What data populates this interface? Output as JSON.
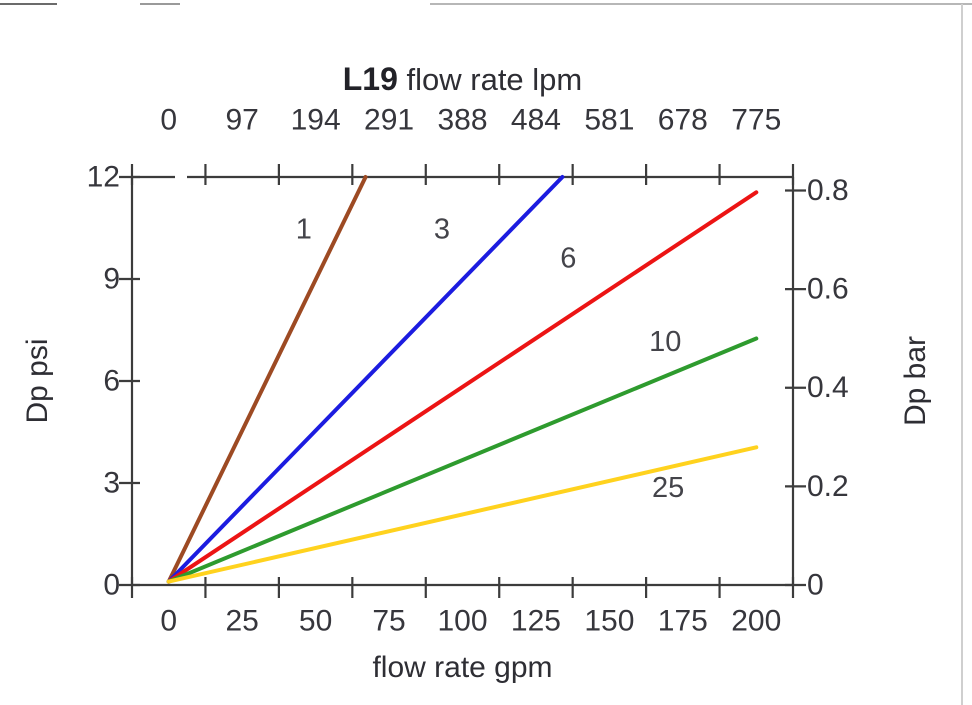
{
  "chart_data": {
    "type": "line",
    "title": "L19",
    "axes": {
      "top": {
        "label": "flow rate lpm",
        "tick_labels": [
          "0",
          "97",
          "194",
          "291",
          "388",
          "484",
          "581",
          "678",
          "775"
        ]
      },
      "bottom": {
        "label": "flow rate gpm",
        "tick_labels": [
          "0",
          "25",
          "50",
          "75",
          "100",
          "125",
          "150",
          "175",
          "200"
        ],
        "gpm_per_slot": 25
      },
      "left": {
        "label": "Dp psi",
        "ticks": [
          0,
          3,
          6,
          9,
          12
        ],
        "range": [
          0,
          12
        ]
      },
      "right": {
        "label": "Dp bar",
        "ticks": [
          0,
          0.2,
          0.4,
          0.6,
          0.8
        ]
      }
    },
    "grid": false,
    "legend": "inline-labels-on-lines",
    "axis_color": "#3c3c3c",
    "tick_label_color": "#36363c",
    "series_label_color": "#44444a",
    "psi_per_bar": 14.5038,
    "series": [
      {
        "name": "1",
        "color": "#9d4a23",
        "points_gpm_psi": [
          [
            0,
            0.1
          ],
          [
            67,
            12
          ]
        ],
        "label_at_gpm_psi": [
          46,
          10.45
        ]
      },
      {
        "name": "3",
        "color": "#1c1ce0",
        "points_gpm_psi": [
          [
            0,
            0.1
          ],
          [
            134,
            12
          ]
        ],
        "label_at_gpm_psi": [
          93,
          10.45
        ]
      },
      {
        "name": "6",
        "color": "#ec1414",
        "points_gpm_psi": [
          [
            0,
            0.1
          ],
          [
            200,
            11.55
          ]
        ],
        "label_at_gpm_psi": [
          136,
          9.6
        ]
      },
      {
        "name": "10",
        "color": "#2e9b2e",
        "points_gpm_psi": [
          [
            0,
            0.1
          ],
          [
            200,
            7.25
          ]
        ],
        "label_at_gpm_psi": [
          169,
          7.15
        ]
      },
      {
        "name": "25",
        "color": "#ffd21e",
        "points_gpm_psi": [
          [
            0,
            0.1
          ],
          [
            200,
            4.05
          ]
        ],
        "label_at_gpm_psi": [
          170,
          2.85
        ]
      }
    ]
  }
}
